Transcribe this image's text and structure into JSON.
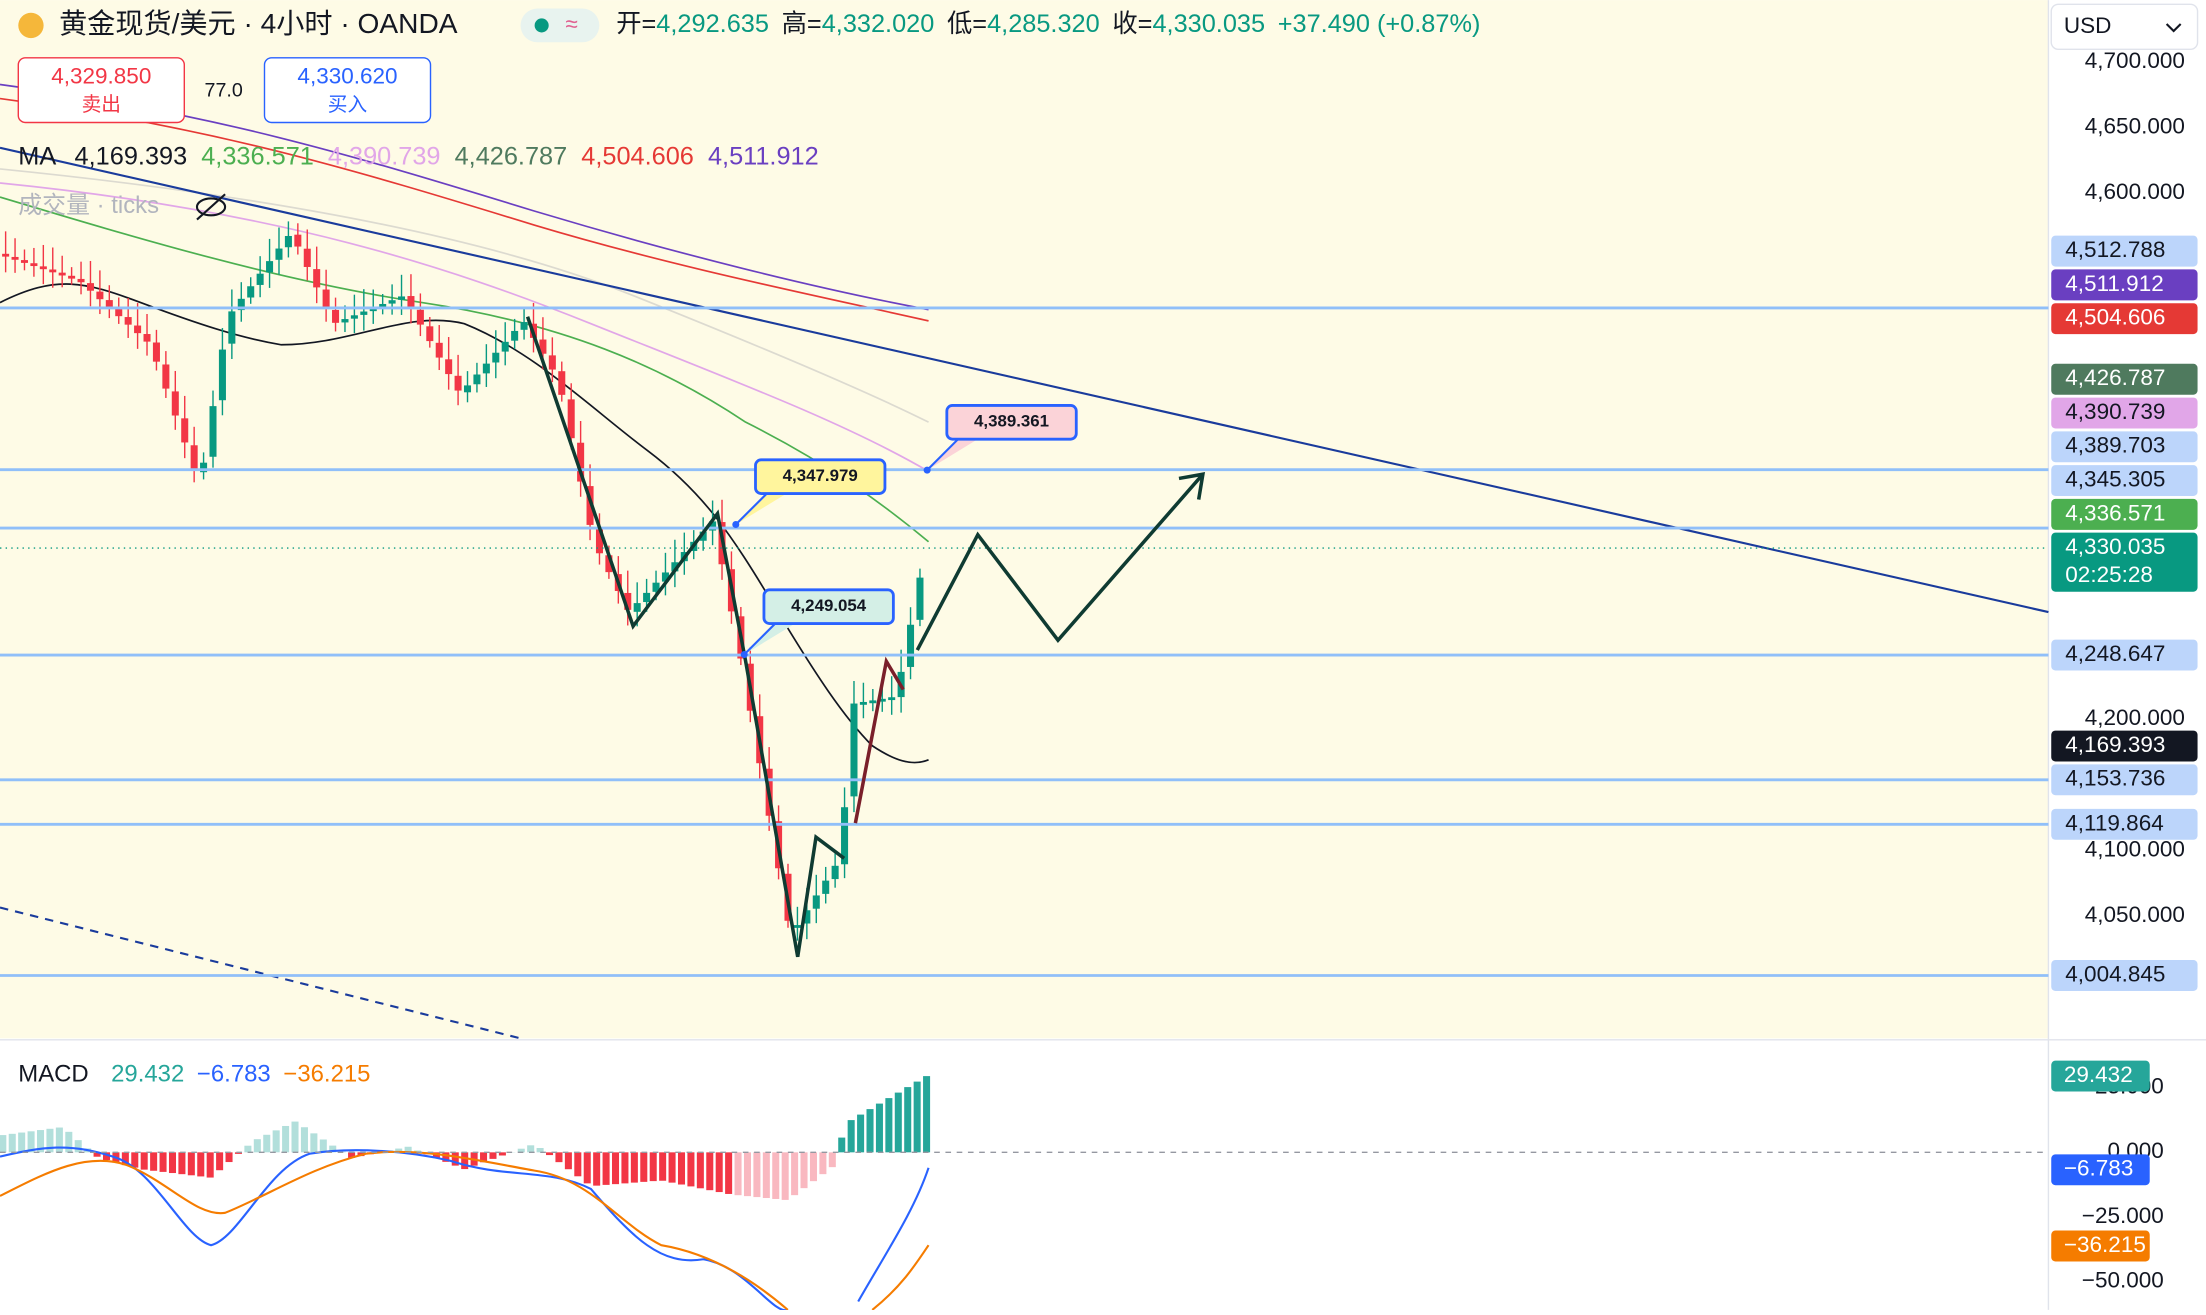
{
  "header": {
    "symbol": "黄金现货/美元 · 4小时 · OANDA",
    "ohlc": [
      {
        "label": "开=",
        "value": "4,292.635"
      },
      {
        "label": "高=",
        "value": "4,332.020"
      },
      {
        "label": "低=",
        "value": "4,285.320"
      },
      {
        "label": "收=",
        "value": "4,330.035"
      }
    ],
    "change": "+37.490 (+0.87%)",
    "currency": "USD"
  },
  "trade": {
    "sell_price": "4,329.850",
    "sell_label": "卖出",
    "spread": "77.0",
    "buy_price": "4,330.620",
    "buy_label": "买入"
  },
  "ma": {
    "label": "MA",
    "values": [
      {
        "text": "4,169.393",
        "color": "#131722"
      },
      {
        "text": "4,336.571",
        "color": "#4caf50"
      },
      {
        "text": "4,390.739",
        "color": "#e1a6e8"
      },
      {
        "text": "4,426.787",
        "color": "#4f7a5e"
      },
      {
        "text": "4,504.606",
        "color": "#e53935"
      },
      {
        "text": "4,511.912",
        "color": "#6a3fc1"
      }
    ]
  },
  "volume_label": "成交量 · ticks",
  "price_axis": {
    "ylim": [
      3957,
      4747
    ],
    "ticks": [
      {
        "value": 4700,
        "label": "4,700.000"
      },
      {
        "value": 4650,
        "label": "4,650.000"
      },
      {
        "value": 4600,
        "label": "4,600.000"
      },
      {
        "value": 4200,
        "label": "4,200.000"
      },
      {
        "value": 4100,
        "label": "4,100.000"
      },
      {
        "value": 4050,
        "label": "4,050.000"
      }
    ]
  },
  "price_tags": [
    {
      "value": 4512.788,
      "label": "4,512.788",
      "bg": "#bcd5fb",
      "fg": "#131722",
      "line": true
    },
    {
      "value": 4511.912,
      "label": "4,511.912",
      "bg": "#6a3fc1",
      "fg": "#ffffff",
      "line": false
    },
    {
      "value": 4504.606,
      "label": "4,504.606",
      "bg": "#e53935",
      "fg": "#ffffff",
      "line": false
    },
    {
      "value": 4426.787,
      "label": "4,426.787",
      "bg": "#4f7a5e",
      "fg": "#ffffff",
      "line": false
    },
    {
      "value": 4390.739,
      "label": "4,390.739",
      "bg": "#e1a6e8",
      "fg": "#131722",
      "line": false
    },
    {
      "value": 4389.703,
      "label": "4,389.703",
      "bg": "#bcd5fb",
      "fg": "#131722",
      "line": true
    },
    {
      "value": 4345.305,
      "label": "4,345.305",
      "bg": "#bcd5fb",
      "fg": "#131722",
      "line": true
    },
    {
      "value": 4336.571,
      "label": "4,336.571",
      "bg": "#4caf50",
      "fg": "#ffffff",
      "line": false
    },
    {
      "value": 4330.035,
      "label": "4,330.035",
      "bg": "#089981",
      "fg": "#ffffff",
      "line": false,
      "sub": "02:25:28"
    },
    {
      "value": 4248.647,
      "label": "4,248.647",
      "bg": "#bcd5fb",
      "fg": "#131722",
      "line": true
    },
    {
      "value": 4169.393,
      "label": "4,169.393",
      "bg": "#131722",
      "fg": "#ffffff",
      "line": false
    },
    {
      "value": 4153.736,
      "label": "4,153.736",
      "bg": "#bcd5fb",
      "fg": "#131722",
      "line": true
    },
    {
      "value": 4119.864,
      "label": "4,119.864",
      "bg": "#bcd5fb",
      "fg": "#131722",
      "line": true
    },
    {
      "value": 4004.845,
      "label": "4,004.845",
      "bg": "#bcd5fb",
      "fg": "#131722",
      "line": true
    }
  ],
  "callouts": [
    {
      "value": 4389.361,
      "label": "4,389.361",
      "bg": "#fbd3d8"
    },
    {
      "value": 4347.979,
      "label": "4,347.979",
      "bg": "#fff59d"
    },
    {
      "value": 4249.054,
      "label": "4,249.054",
      "bg": "#d4efe6"
    }
  ],
  "macd": {
    "label": "MACD",
    "ylim": [
      -60.9,
      42.9
    ],
    "ticks": [
      {
        "value": 25,
        "label": "25.000"
      },
      {
        "value": 0,
        "label": "0.000"
      },
      {
        "value": -25,
        "label": "−25.000"
      },
      {
        "value": -50,
        "label": "−50.000"
      }
    ],
    "readouts": [
      {
        "value": 29.432,
        "label": "29.432",
        "color": "#26a69a"
      },
      {
        "value": -6.783,
        "label": "−6.783",
        "color": "#2962ff"
      },
      {
        "value": -36.215,
        "label": "−36.215",
        "color": "#f57c00"
      }
    ]
  }
}
